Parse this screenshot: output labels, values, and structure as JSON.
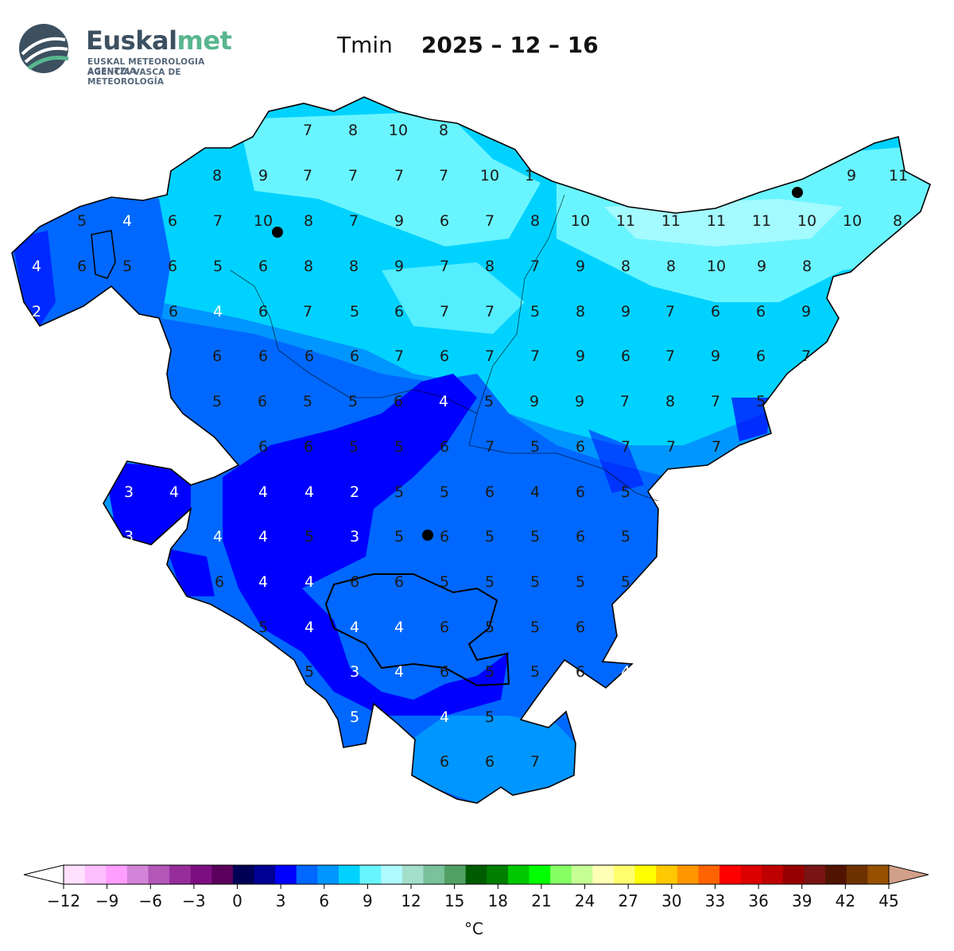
{
  "logo": {
    "name_a": "Euskal",
    "name_b": "met",
    "line1": "EUSKAL METEOROLOGIA AGENTZIA",
    "line2": "AGENCIA VASCA DE METEOROLOGÍA"
  },
  "title": {
    "variable": "Tmin",
    "date": "2025 – 12 – 16"
  },
  "map": {
    "fill_levels": [
      "#0000ff",
      "#0068ff",
      "#0096ff",
      "#00d2ff",
      "#69f5ff",
      "#aefaff"
    ],
    "labels_row": [
      [
        "7",
        "8",
        "10",
        "8"
      ],
      [
        "8",
        "9",
        "7",
        "7",
        "7",
        "7",
        "10",
        "1",
        "9",
        "11"
      ],
      [
        "5",
        "4",
        "6",
        "7",
        "10",
        "8",
        "7",
        "9",
        "6",
        "7",
        "8",
        "10",
        "11",
        "11",
        "11",
        "11",
        "10",
        "10",
        "8"
      ],
      [
        "4",
        "6",
        "5",
        "6",
        "5",
        "6",
        "8",
        "8",
        "9",
        "7",
        "8",
        "7",
        "9",
        "8",
        "8",
        "10",
        "9",
        "8"
      ],
      [
        "2",
        "6",
        "4",
        "6",
        "7",
        "5",
        "6",
        "7",
        "7",
        "5",
        "8",
        "9",
        "7",
        "6",
        "6",
        "9"
      ],
      [
        "6",
        "6",
        "6",
        "6",
        "7",
        "6",
        "7",
        "7",
        "9",
        "6",
        "7",
        "9",
        "6",
        "7"
      ],
      [
        "5",
        "6",
        "5",
        "5",
        "6",
        "4",
        "5",
        "9",
        "9",
        "7",
        "8",
        "7",
        "5"
      ],
      [
        "6",
        "6",
        "5",
        "5",
        "6",
        "7",
        "5",
        "6",
        "7",
        "7",
        "7"
      ],
      [
        "3",
        "4",
        "4",
        "4",
        "2",
        "5",
        "5",
        "6",
        "4",
        "6",
        "5"
      ],
      [
        "3",
        "4",
        "4",
        "5",
        "3",
        "5",
        "6",
        "5",
        "5",
        "6",
        "5"
      ],
      [
        "6",
        "4",
        "4",
        "6",
        "6",
        "5",
        "5",
        "5",
        "5",
        "5"
      ],
      [
        "5",
        "4",
        "4",
        "4",
        "6",
        "5",
        "5",
        "6"
      ],
      [
        "5",
        "3",
        "4",
        "6",
        "5",
        "5",
        "6",
        "4"
      ],
      [
        "5",
        "4",
        "5"
      ],
      [
        "6",
        "6",
        "7"
      ]
    ]
  },
  "colorbar": {
    "unit": "°C",
    "ticks": [
      "−12",
      "−9",
      "−6",
      "−3",
      "0",
      "3",
      "6",
      "9",
      "12",
      "15",
      "18",
      "21",
      "24",
      "27",
      "30",
      "33",
      "36",
      "39",
      "42",
      "45"
    ],
    "colors": [
      "#ffe1ff",
      "#ffbfff",
      "#ff9eff",
      "#d384d8",
      "#b357b8",
      "#962d9b",
      "#7d0e81",
      "#5a005c",
      "#000055",
      "#000092",
      "#0000ff",
      "#0068ff",
      "#0096ff",
      "#00d2ff",
      "#69f5ff",
      "#aefaff",
      "#a4dfcc",
      "#79c29b",
      "#50a063",
      "#005c00",
      "#007f00",
      "#00c800",
      "#00ff00",
      "#85ff64",
      "#c5ff95",
      "#ffffb5",
      "#ffff6e",
      "#ffff00",
      "#ffc800",
      "#ff9600",
      "#ff6400",
      "#ff0000",
      "#dc0000",
      "#be0000",
      "#960000",
      "#781414",
      "#501400",
      "#6e3200",
      "#965000"
    ],
    "under_color": "#ffffff",
    "over_color": "#d2a089"
  }
}
